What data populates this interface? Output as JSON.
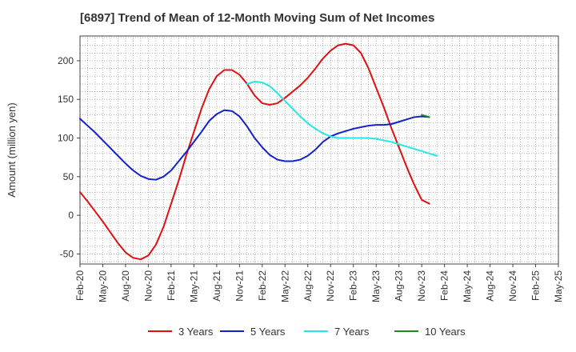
{
  "chart_data": {
    "type": "line",
    "title": "[6897]  Trend of Mean of 12-Month Moving Sum of Net Incomes",
    "ylabel": "Amount (million yen)",
    "xlabel": "",
    "ylim": [
      -63,
      232
    ],
    "yticks": [
      -50,
      0,
      50,
      100,
      150,
      200
    ],
    "x_ticks": [
      "Feb-20",
      "May-20",
      "Aug-20",
      "Nov-20",
      "Feb-21",
      "May-21",
      "Aug-21",
      "Nov-21",
      "Feb-22",
      "May-22",
      "Aug-22",
      "Nov-22",
      "Feb-23",
      "May-23",
      "Aug-23",
      "Nov-23",
      "Feb-24",
      "May-24",
      "Aug-24",
      "Nov-24",
      "Feb-25",
      "May-25"
    ],
    "grid": true,
    "legend_position": "bottom",
    "series": [
      {
        "name": "3 Years",
        "color": "#dd1111",
        "points": [
          [
            0,
            30
          ],
          [
            1,
            18
          ],
          [
            2,
            5
          ],
          [
            3,
            -8
          ],
          [
            4,
            -22
          ],
          [
            5,
            -36
          ],
          [
            6,
            -48
          ],
          [
            7,
            -55
          ],
          [
            8,
            -57
          ],
          [
            9,
            -52
          ],
          [
            10,
            -38
          ],
          [
            11,
            -15
          ],
          [
            12,
            15
          ],
          [
            13,
            45
          ],
          [
            14,
            78
          ],
          [
            15,
            108
          ],
          [
            16,
            138
          ],
          [
            17,
            163
          ],
          [
            18,
            180
          ],
          [
            19,
            188
          ],
          [
            20,
            188
          ],
          [
            21,
            182
          ],
          [
            22,
            170
          ],
          [
            23,
            155
          ],
          [
            24,
            145
          ],
          [
            25,
            143
          ],
          [
            26,
            145
          ],
          [
            27,
            152
          ],
          [
            28,
            160
          ],
          [
            29,
            168
          ],
          [
            30,
            178
          ],
          [
            31,
            190
          ],
          [
            32,
            203
          ],
          [
            33,
            213
          ],
          [
            34,
            220
          ],
          [
            35,
            222
          ],
          [
            36,
            220
          ],
          [
            37,
            210
          ],
          [
            38,
            190
          ],
          [
            39,
            165
          ],
          [
            40,
            140
          ],
          [
            41,
            113
          ],
          [
            42,
            88
          ],
          [
            43,
            63
          ],
          [
            44,
            40
          ],
          [
            45,
            20
          ],
          [
            46,
            15
          ]
        ]
      },
      {
        "name": "5 Years",
        "color": "#1122cc",
        "points": [
          [
            0,
            125
          ],
          [
            1,
            116
          ],
          [
            2,
            107
          ],
          [
            3,
            97
          ],
          [
            4,
            87
          ],
          [
            5,
            77
          ],
          [
            6,
            67
          ],
          [
            7,
            58
          ],
          [
            8,
            51
          ],
          [
            9,
            47
          ],
          [
            10,
            46
          ],
          [
            11,
            50
          ],
          [
            12,
            58
          ],
          [
            13,
            70
          ],
          [
            14,
            82
          ],
          [
            15,
            95
          ],
          [
            16,
            108
          ],
          [
            17,
            122
          ],
          [
            18,
            131
          ],
          [
            19,
            136
          ],
          [
            20,
            135
          ],
          [
            21,
            128
          ],
          [
            22,
            115
          ],
          [
            23,
            100
          ],
          [
            24,
            88
          ],
          [
            25,
            78
          ],
          [
            26,
            72
          ],
          [
            27,
            70
          ],
          [
            28,
            70
          ],
          [
            29,
            72
          ],
          [
            30,
            77
          ],
          [
            31,
            85
          ],
          [
            32,
            95
          ],
          [
            33,
            102
          ],
          [
            34,
            106
          ],
          [
            35,
            109
          ],
          [
            36,
            112
          ],
          [
            37,
            114
          ],
          [
            38,
            116
          ],
          [
            39,
            117
          ],
          [
            40,
            117
          ],
          [
            41,
            118
          ],
          [
            42,
            121
          ],
          [
            43,
            124
          ],
          [
            44,
            127
          ],
          [
            45,
            128
          ],
          [
            46,
            127
          ]
        ]
      },
      {
        "name": "7 Years",
        "color": "#22e8e8",
        "points": [
          [
            22,
            170
          ],
          [
            23,
            173
          ],
          [
            24,
            172
          ],
          [
            25,
            167
          ],
          [
            26,
            158
          ],
          [
            27,
            148
          ],
          [
            28,
            138
          ],
          [
            29,
            128
          ],
          [
            30,
            119
          ],
          [
            31,
            112
          ],
          [
            32,
            106
          ],
          [
            33,
            102
          ],
          [
            34,
            100
          ],
          [
            35,
            100
          ],
          [
            36,
            100
          ],
          [
            37,
            100
          ],
          [
            38,
            100
          ],
          [
            39,
            99
          ],
          [
            40,
            97
          ],
          [
            41,
            95
          ],
          [
            42,
            92
          ],
          [
            43,
            89
          ],
          [
            44,
            86
          ],
          [
            45,
            83
          ],
          [
            46,
            80
          ],
          [
            47,
            77
          ]
        ]
      },
      {
        "name": "10 Years",
        "color": "#228822",
        "points": [
          [
            45,
            130
          ],
          [
            46,
            127
          ]
        ]
      }
    ]
  }
}
